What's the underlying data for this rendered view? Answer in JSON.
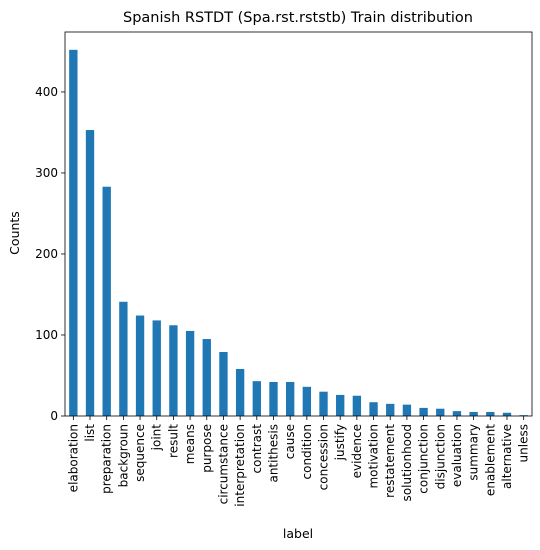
{
  "chart_data": {
    "type": "bar",
    "title": "Spanish RSTDT (Spa.rst.rststb) Train distribution",
    "xlabel": "label",
    "ylabel": "Counts",
    "categories": [
      "elaboration",
      "list",
      "preparation",
      "backgroun",
      "sequence",
      "joint",
      "result",
      "means",
      "purpose",
      "circumstance",
      "interpretation",
      "contrast",
      "antithesis",
      "cause",
      "condition",
      "concession",
      "justify",
      "evidence",
      "motivation",
      "restatement",
      "solutionhood",
      "conjunction",
      "disjunction",
      "evaluation",
      "summary",
      "enablement",
      "alternative",
      "unless"
    ],
    "values": [
      452,
      353,
      283,
      141,
      124,
      118,
      112,
      105,
      95,
      79,
      58,
      43,
      42,
      42,
      36,
      30,
      26,
      25,
      17,
      15,
      14,
      10,
      9,
      6,
      5,
      5,
      4,
      1
    ],
    "ylim": [
      0,
      474
    ],
    "yticks": [
      0,
      100,
      200,
      300,
      400
    ],
    "bar_color": "#1f77b4",
    "grid": false,
    "legend": "none"
  }
}
